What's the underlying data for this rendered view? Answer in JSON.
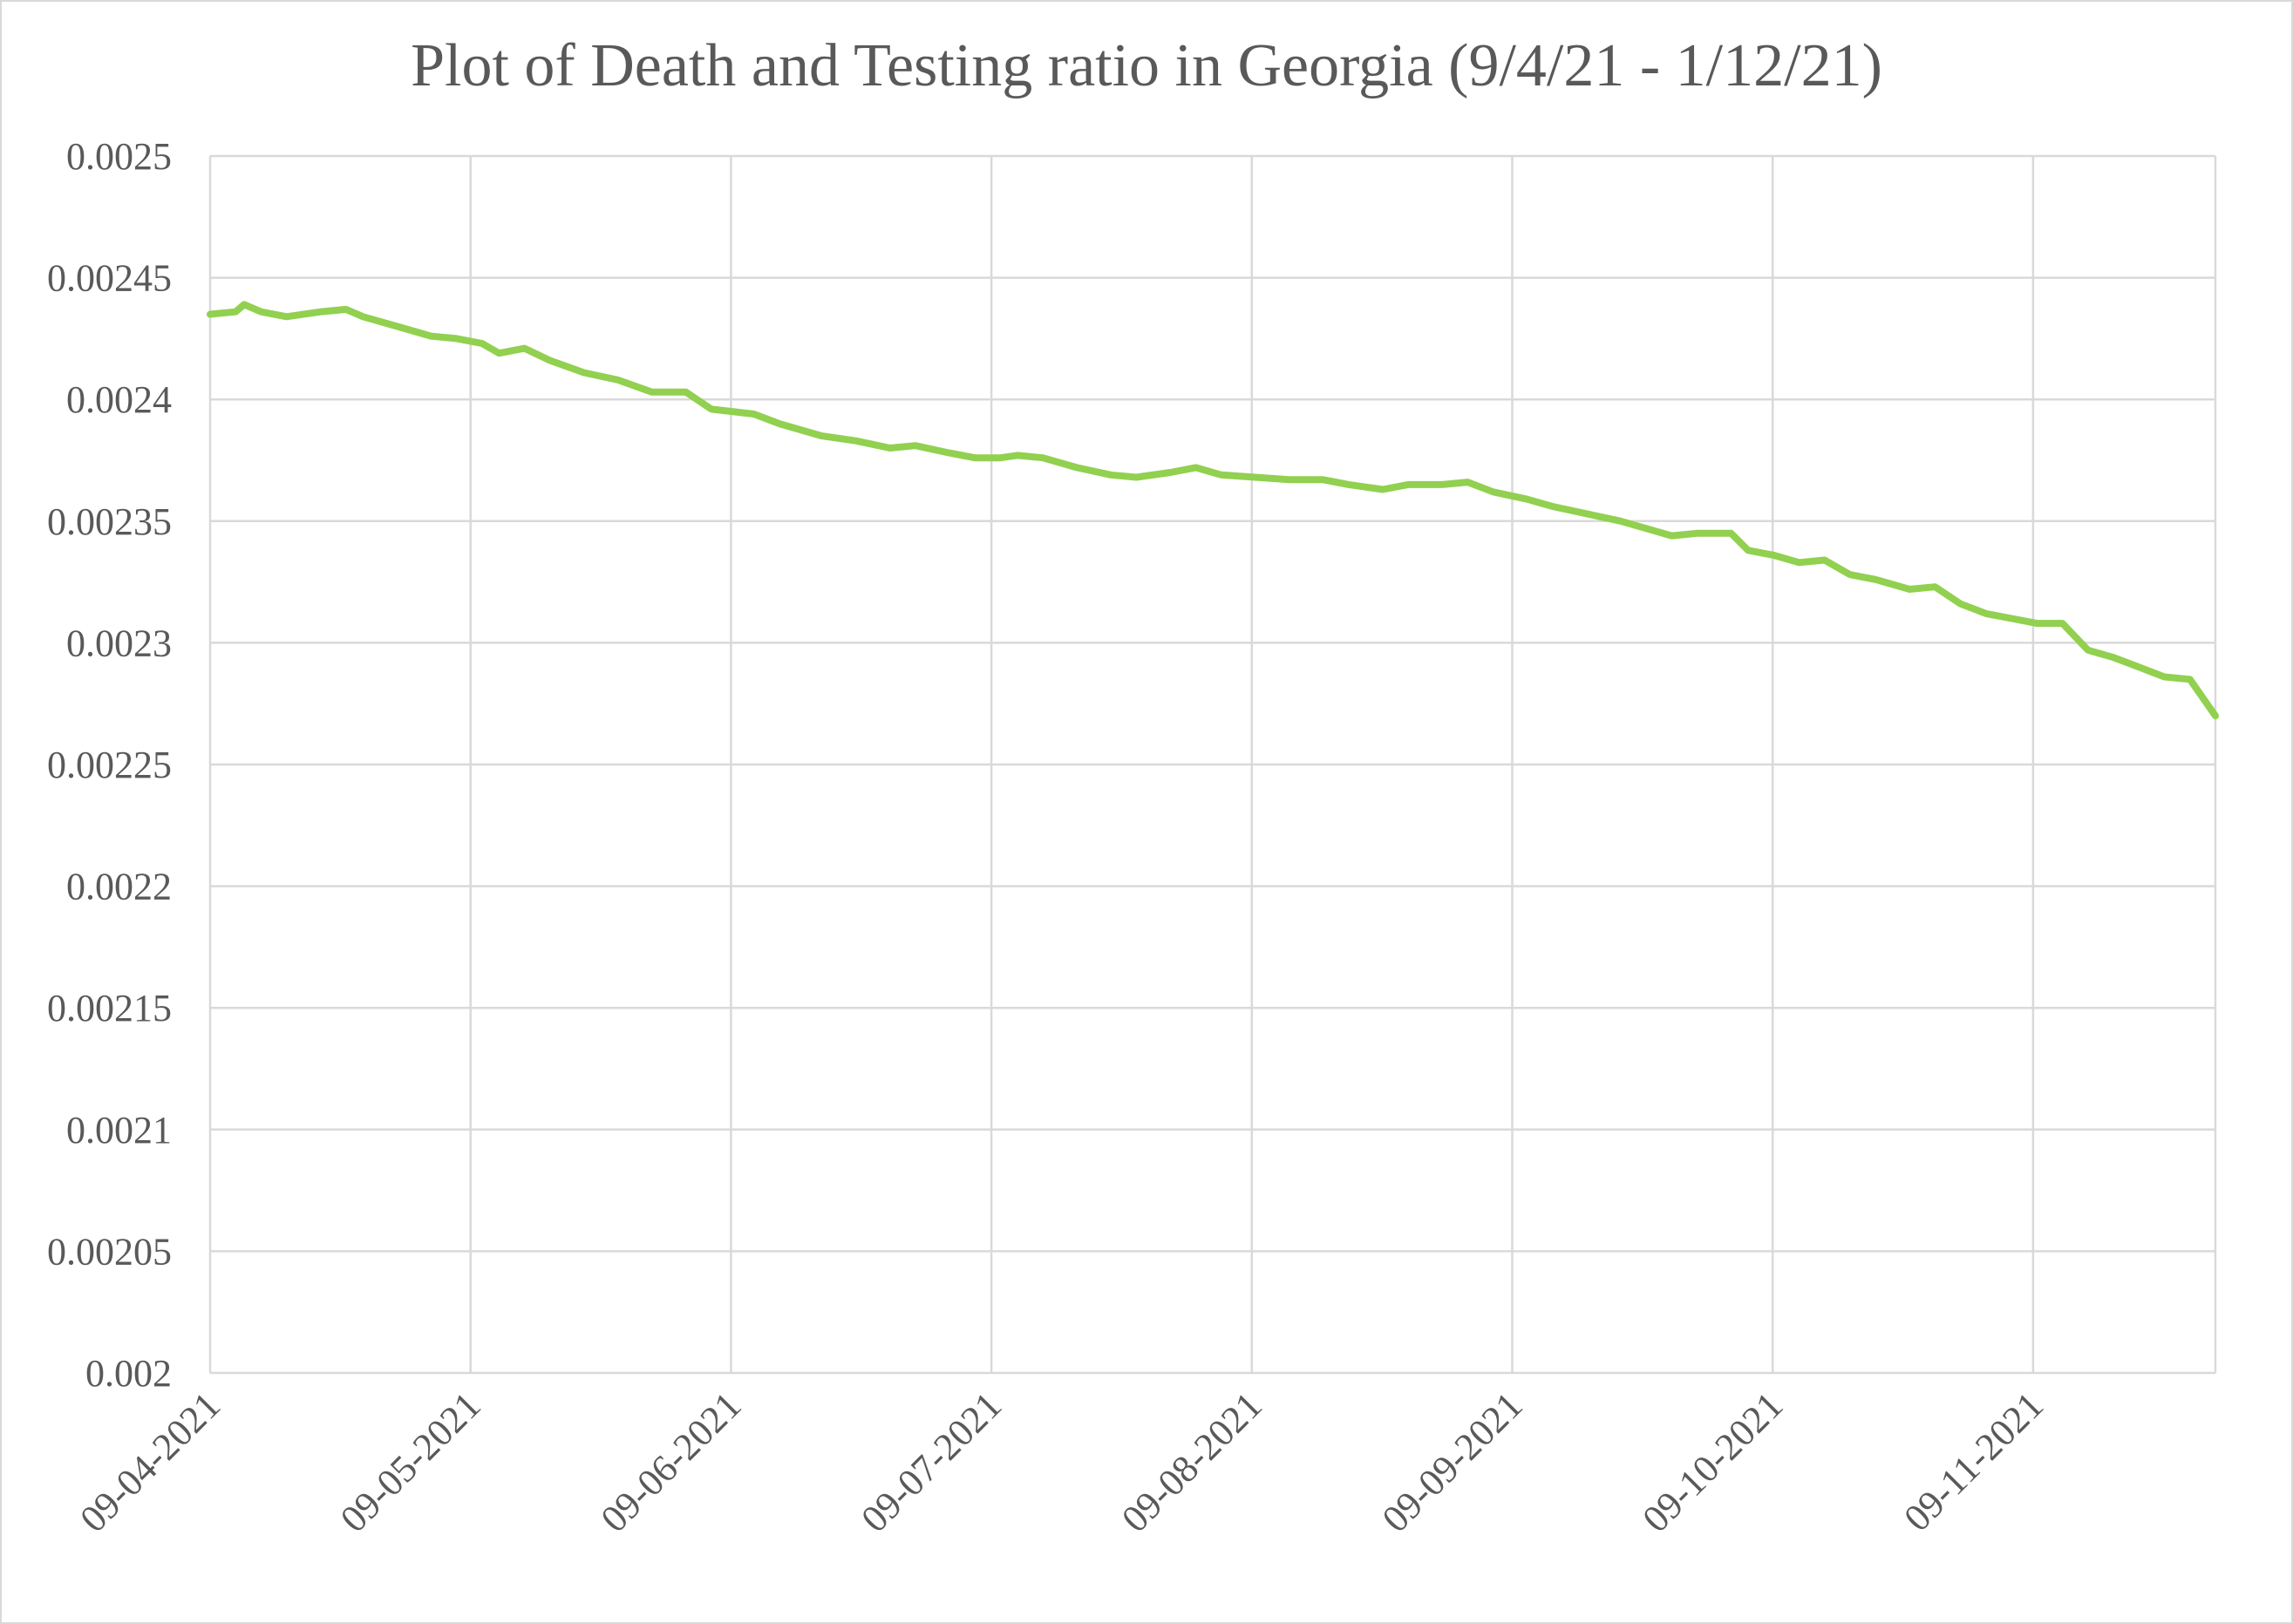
{
  "chart_data": {
    "type": "line",
    "title": "Plot of Death and Testing ratio in Georgia (9/4/21 - 1/12/21)",
    "xlabel": "",
    "ylabel": "",
    "ylim": [
      0.002,
      0.0025
    ],
    "y_ticks": [
      "0.002",
      "0.00205",
      "0.0021",
      "0.00215",
      "0.0022",
      "0.00225",
      "0.0023",
      "0.00235",
      "0.0024",
      "0.00245",
      "0.0025"
    ],
    "x_ticks": [
      "09-04-2021",
      "09-05-2021",
      "09-06-2021",
      "09-07-2021",
      "09-08-2021",
      "09-09-2021",
      "09-10-2021",
      "09-11-2021"
    ],
    "x_range": [
      "2021-04-09",
      "2021-12-01"
    ],
    "grid": true,
    "legend": "none",
    "series": [
      {
        "color": "#92d050",
        "points": [
          [
            "2021-04-09",
            0.002435
          ],
          [
            "2021-04-12",
            0.002436
          ],
          [
            "2021-04-13",
            0.002439
          ],
          [
            "2021-04-15",
            0.002436
          ],
          [
            "2021-04-18",
            0.002434
          ],
          [
            "2021-04-22",
            0.002436
          ],
          [
            "2021-04-25",
            0.002437
          ],
          [
            "2021-04-27",
            0.002434
          ],
          [
            "2021-05-01",
            0.00243
          ],
          [
            "2021-05-05",
            0.002426
          ],
          [
            "2021-05-08",
            0.002425
          ],
          [
            "2021-05-11",
            0.002423
          ],
          [
            "2021-05-13",
            0.002419
          ],
          [
            "2021-05-16",
            0.002421
          ],
          [
            "2021-05-19",
            0.002416
          ],
          [
            "2021-05-23",
            0.002411
          ],
          [
            "2021-05-27",
            0.002408
          ],
          [
            "2021-05-31",
            0.002403
          ],
          [
            "2021-06-04",
            0.002403
          ],
          [
            "2021-06-07",
            0.002396
          ],
          [
            "2021-06-12",
            0.002394
          ],
          [
            "2021-06-15",
            0.00239
          ],
          [
            "2021-06-20",
            0.002385
          ],
          [
            "2021-06-24",
            0.002383
          ],
          [
            "2021-06-28",
            0.00238
          ],
          [
            "2021-07-01",
            0.002381
          ],
          [
            "2021-07-05",
            0.002378
          ],
          [
            "2021-07-08",
            0.002376
          ],
          [
            "2021-07-11",
            0.002376
          ],
          [
            "2021-07-13",
            0.002377
          ],
          [
            "2021-07-16",
            0.002376
          ],
          [
            "2021-07-20",
            0.002372
          ],
          [
            "2021-07-24",
            0.002369
          ],
          [
            "2021-07-27",
            0.002368
          ],
          [
            "2021-07-31",
            0.00237
          ],
          [
            "2021-08-03",
            0.002372
          ],
          [
            "2021-08-06",
            0.002369
          ],
          [
            "2021-08-10",
            0.002368
          ],
          [
            "2021-08-14",
            0.002367
          ],
          [
            "2021-08-18",
            0.002367
          ],
          [
            "2021-08-21",
            0.002365
          ],
          [
            "2021-08-25",
            0.002363
          ],
          [
            "2021-08-28",
            0.002365
          ],
          [
            "2021-09-01",
            0.002365
          ],
          [
            "2021-09-04",
            0.002366
          ],
          [
            "2021-09-07",
            0.002362
          ],
          [
            "2021-09-11",
            0.002359
          ],
          [
            "2021-09-14",
            0.002356
          ],
          [
            "2021-09-18",
            0.002353
          ],
          [
            "2021-09-22",
            0.00235
          ],
          [
            "2021-09-25",
            0.002347
          ],
          [
            "2021-09-28",
            0.002344
          ],
          [
            "2021-10-01",
            0.002345
          ],
          [
            "2021-10-05",
            0.002345
          ],
          [
            "2021-10-07",
            0.002338
          ],
          [
            "2021-10-10",
            0.002336
          ],
          [
            "2021-10-13",
            0.002333
          ],
          [
            "2021-10-16",
            0.002334
          ],
          [
            "2021-10-19",
            0.002328
          ],
          [
            "2021-10-22",
            0.002326
          ],
          [
            "2021-10-24",
            0.002324
          ],
          [
            "2021-10-26",
            0.002322
          ],
          [
            "2021-10-29",
            0.002323
          ],
          [
            "2021-11-01",
            0.002316
          ],
          [
            "2021-11-04",
            0.002312
          ],
          [
            "2021-11-07",
            0.00231
          ],
          [
            "2021-11-10",
            0.002308
          ],
          [
            "2021-11-13",
            0.002308
          ],
          [
            "2021-11-16",
            0.002297
          ],
          [
            "2021-11-19",
            0.002294
          ],
          [
            "2021-11-22",
            0.00229
          ],
          [
            "2021-11-25",
            0.002286
          ],
          [
            "2021-11-28",
            0.002285
          ],
          [
            "2021-12-01",
            0.00227
          ]
        ]
      }
    ]
  }
}
